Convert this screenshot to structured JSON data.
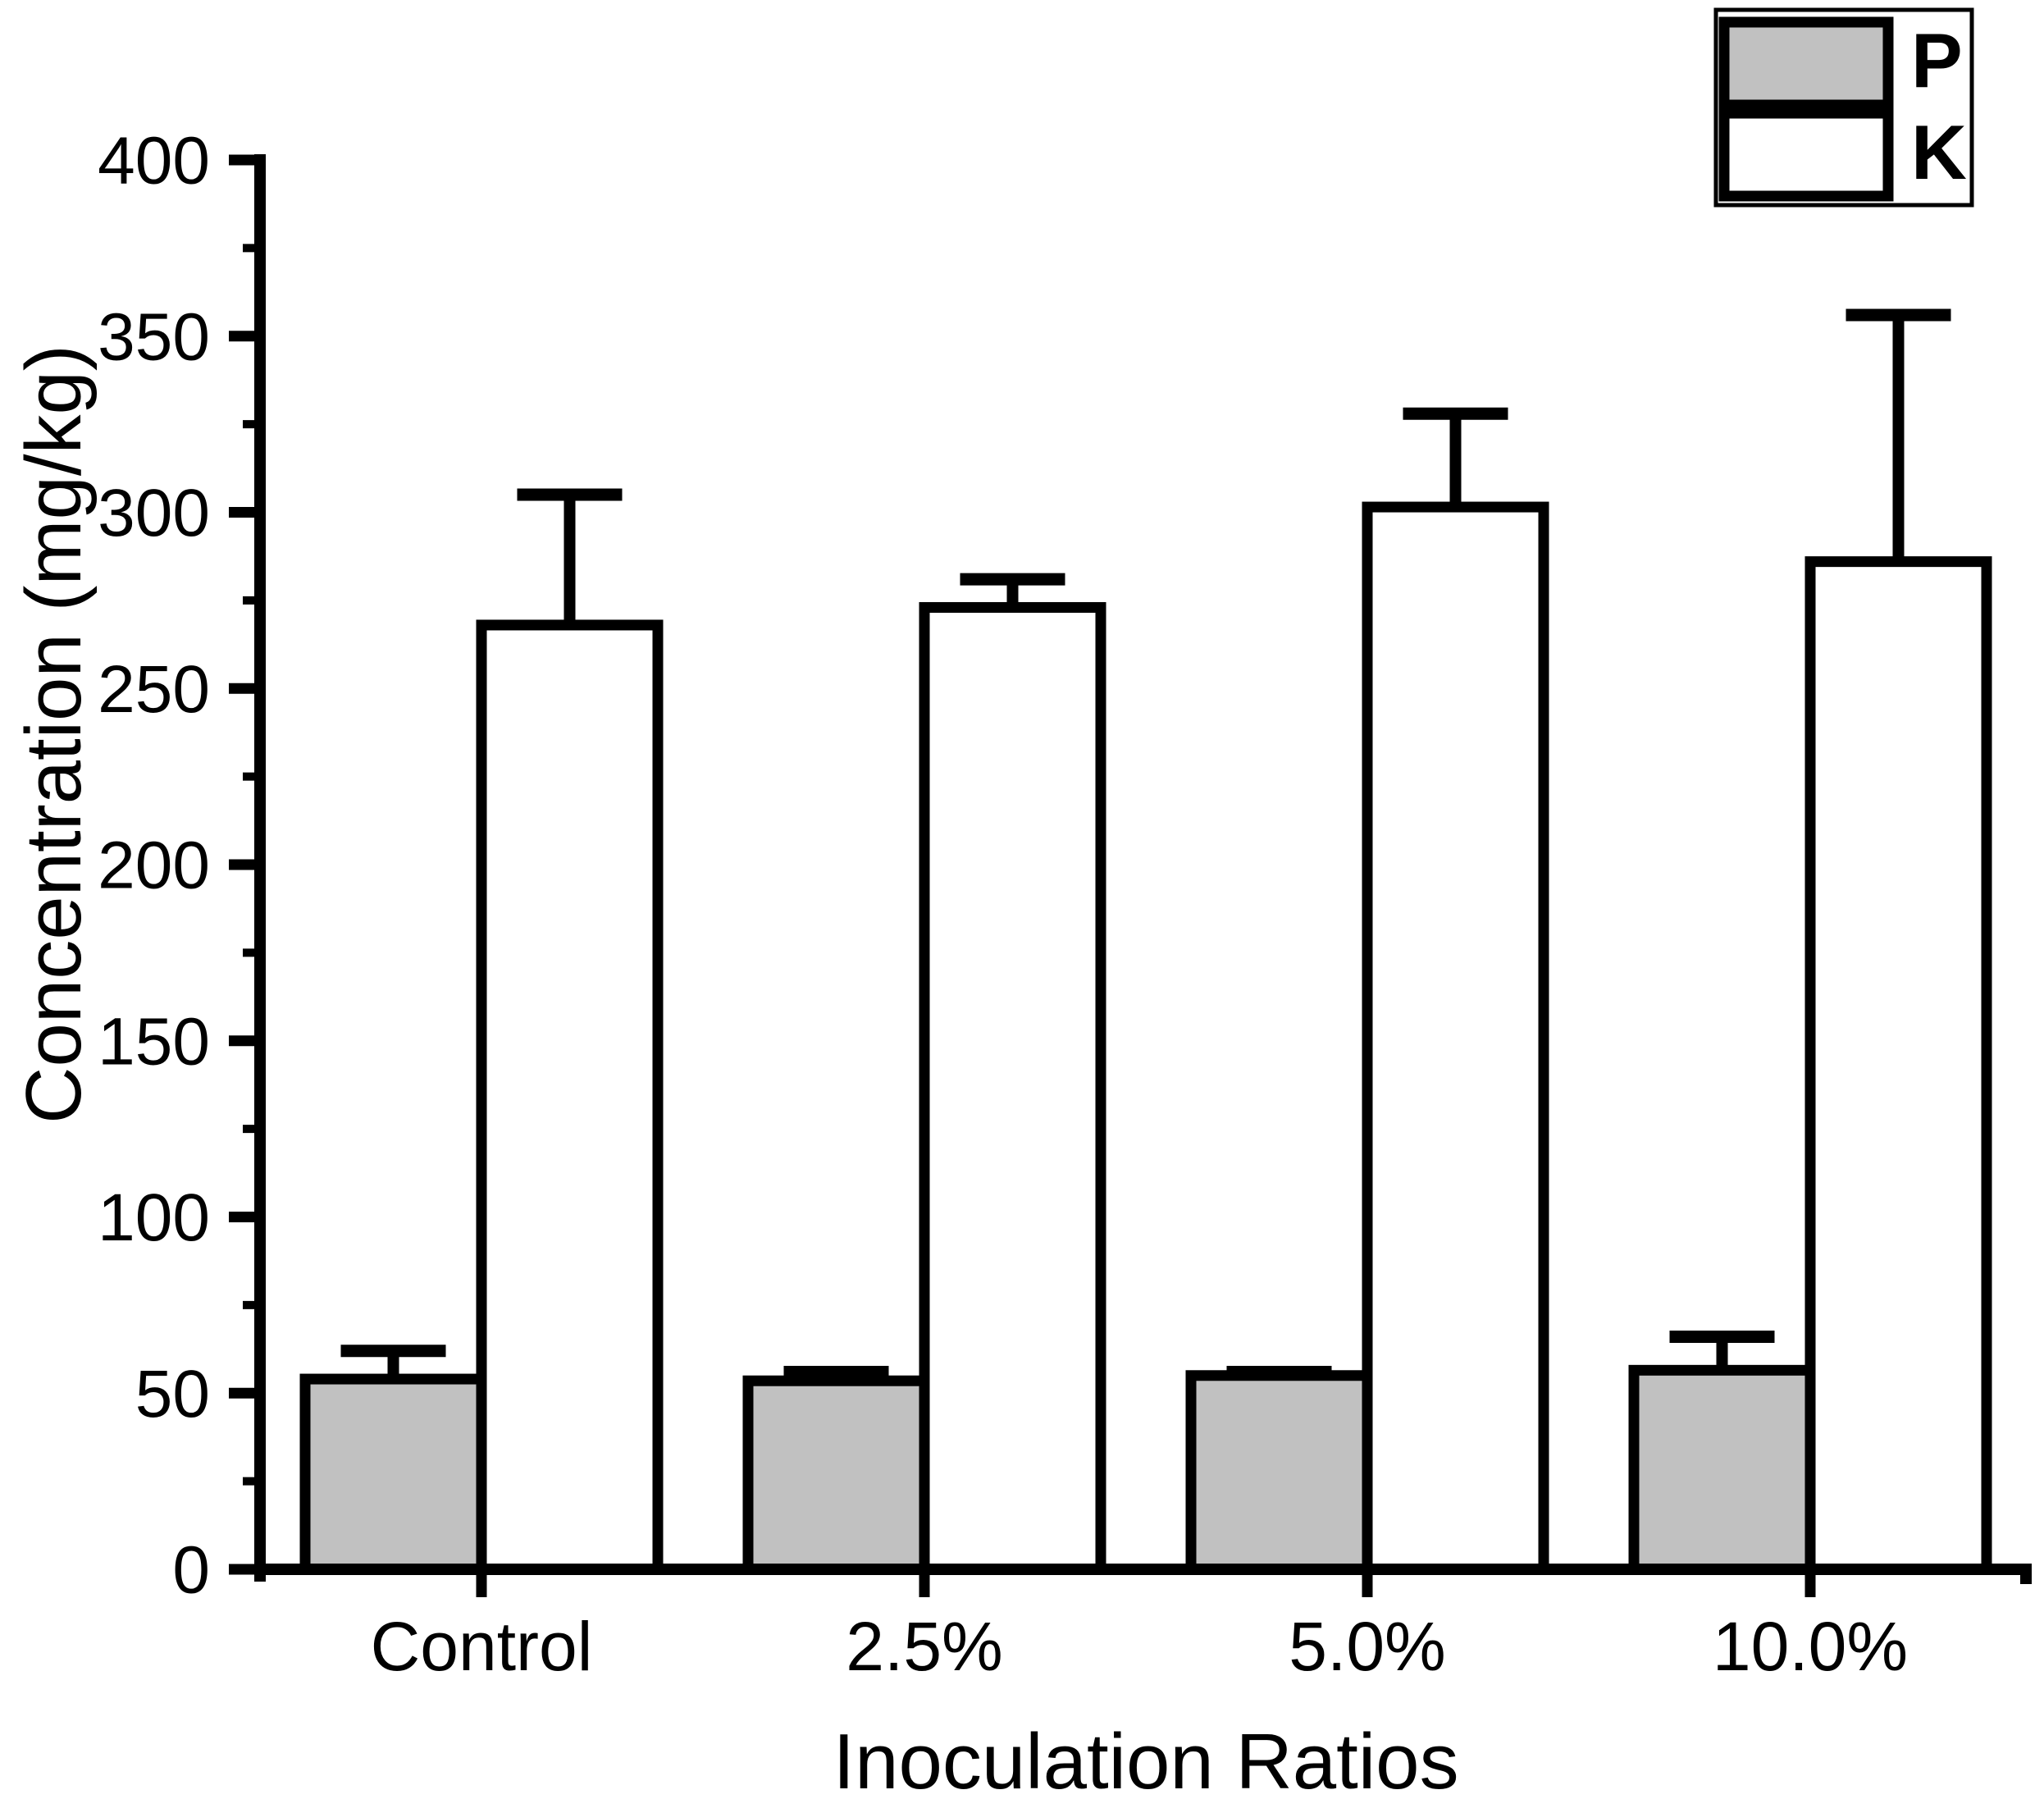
{
  "chart_data": {
    "type": "bar",
    "title": "",
    "categories": [
      "Control",
      "2.5%",
      "5.0%",
      "10.0%"
    ],
    "series": [
      {
        "name": "P",
        "fill": "#c1c1c1",
        "values": [
          54,
          53.5,
          55,
          56.5
        ],
        "errors_plus": [
          8,
          2.5,
          1,
          9.5
        ]
      },
      {
        "name": "K",
        "fill": "#ffffff",
        "values": [
          268,
          273,
          301.5,
          286
        ],
        "errors_plus": [
          37,
          8,
          26.5,
          70
        ]
      }
    ],
    "xlabel": "Inoculation Ratios",
    "ylabel": "Concentration (mg/kg)",
    "ylim": [
      0,
      400
    ],
    "ytick_step": 50,
    "yminor_step": 25,
    "ytick_labels": [
      "0",
      "50",
      "100",
      "150",
      "200",
      "250",
      "300",
      "350",
      "400"
    ],
    "legend": {
      "position": "top-right"
    },
    "grid": false,
    "colors": {
      "axis": "#000000",
      "bar_outline": "#000000",
      "error_bar": "#000000",
      "background": "#ffffff"
    }
  }
}
